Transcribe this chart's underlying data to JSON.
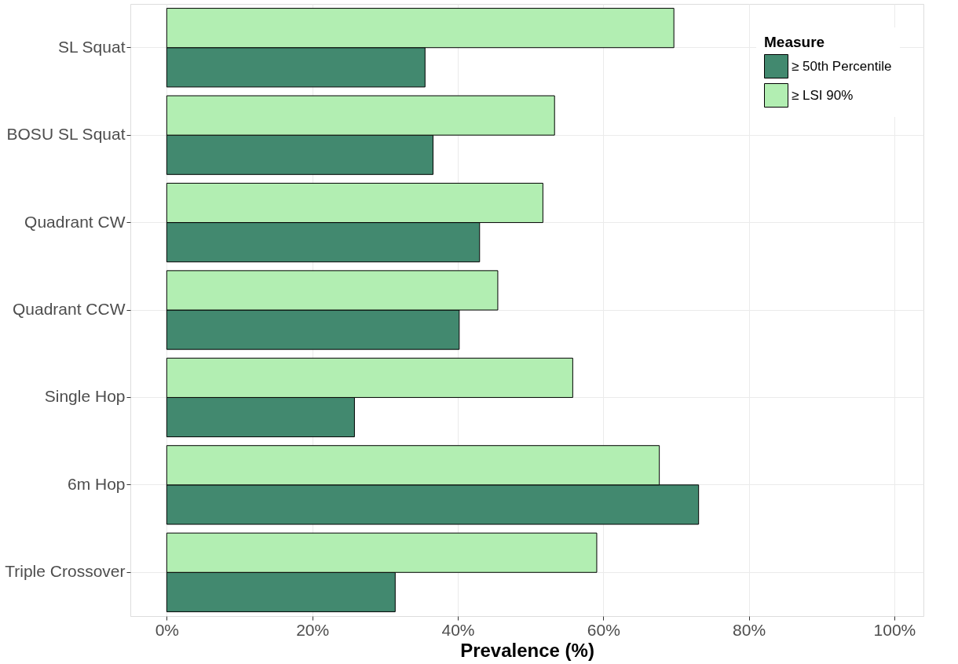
{
  "chart_data": {
    "type": "bar",
    "orientation": "horizontal",
    "xlabel": "Prevalence (%)",
    "legend_title": "Measure",
    "legend": "top right",
    "grid": true,
    "categories": [
      "SL Squat",
      "BOSU SL Squat",
      "Quadrant CW",
      "Quadrant CCW",
      "Single Hop",
      "6m Hop",
      "Triple Crossover"
    ],
    "series": [
      {
        "name": "≥ 50th Percentile",
        "color": "#42896f",
        "values": [
          35.5,
          36.6,
          43.0,
          40.2,
          25.8,
          73.1,
          31.4
        ]
      },
      {
        "name": "≥ LSI 90%",
        "color": "#b2eeb2",
        "values": [
          69.7,
          53.3,
          51.7,
          45.5,
          55.8,
          67.7,
          59.1
        ]
      }
    ],
    "xlim": [
      -5,
      104
    ],
    "xticks": [
      {
        "value": 0,
        "label": "0%"
      },
      {
        "value": 20,
        "label": "20%"
      },
      {
        "value": 40,
        "label": "40%"
      },
      {
        "value": 60,
        "label": "60%"
      },
      {
        "value": 80,
        "label": "80%"
      },
      {
        "value": 100,
        "label": "100%"
      }
    ]
  }
}
